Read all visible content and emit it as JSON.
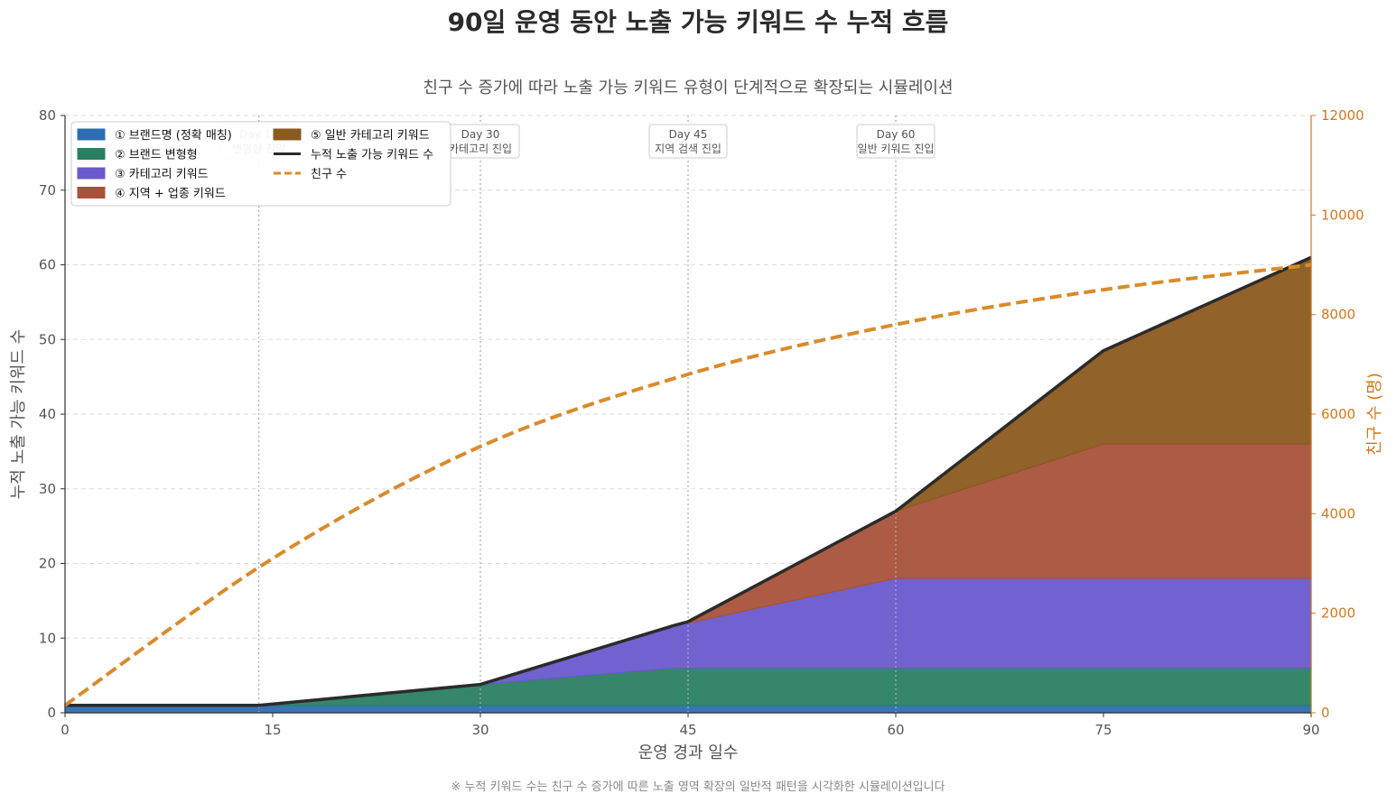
{
  "chart_data": {
    "type": "area",
    "title": "90일 운영 동안 노출 가능 키워드 수 누적 흐름",
    "subtitle": "친구 수 증가에 따라 노출 가능 키워드 유형이 단계적으로 확장되는 시뮬레이션",
    "xlabel": "운영 경과 일수",
    "ylabel": "누적 노출 가능 키워드 수",
    "y2label": "친구 수 (명)",
    "footnote": "※ 누적 키워드 수는 친구 수 증가에 따른 노출 영역 확장의 일반적 패턴을 시각화한 시뮬레이션입니다",
    "xlim": [
      0,
      90
    ],
    "ylim": [
      0,
      80
    ],
    "y2lim": [
      0,
      12000
    ],
    "xticks": [
      0,
      15,
      30,
      45,
      60,
      75,
      90
    ],
    "yticks": [
      0,
      10,
      20,
      30,
      40,
      50,
      60,
      70,
      80
    ],
    "y2ticks": [
      0,
      2000,
      4000,
      6000,
      8000,
      10000,
      12000
    ],
    "grid": true,
    "legend_position": "top-left",
    "x": [
      0,
      14,
      30,
      44,
      45,
      60,
      75,
      90
    ],
    "stack_series": [
      {
        "name": "① 브랜드명 (정확 매칭)",
        "color": "#2e6db4",
        "values": [
          1,
          1,
          1,
          1,
          1,
          1,
          1,
          1
        ]
      },
      {
        "name": "② 브랜드 변형형",
        "color": "#2a7f62",
        "values": [
          0,
          0,
          2.8,
          5,
          5,
          5,
          5,
          5
        ]
      },
      {
        "name": "③ 카테고리 키워드",
        "color": "#6a5acd",
        "values": [
          0,
          0,
          0,
          5.7,
          6,
          12,
          12,
          12
        ]
      },
      {
        "name": "④ 지역 + 업종 키워드",
        "color": "#a8523b",
        "values": [
          0,
          0,
          0,
          0,
          0.2,
          9,
          18,
          18
        ]
      },
      {
        "name": "⑤ 일반 카테고리 키워드",
        "color": "#8b5a1f",
        "values": [
          0,
          0,
          0,
          0,
          0,
          0,
          12.5,
          25
        ]
      }
    ],
    "total_series": {
      "name": "누적 노출 가능 키워드 수",
      "color": "#2b2b2b"
    },
    "friends_series": {
      "name": "친구 수",
      "color": "#d98b2b",
      "x": [
        0,
        15,
        30,
        45,
        60,
        75,
        90
      ],
      "values": [
        150,
        3100,
        5350,
        6800,
        7800,
        8500,
        9000
      ]
    },
    "annotations": [
      {
        "x": 14,
        "day": "Day 14",
        "label": "변형형 진입"
      },
      {
        "x": 30,
        "day": "Day 30",
        "label": "카테고리 진입"
      },
      {
        "x": 45,
        "day": "Day 45",
        "label": "지역 검색 진입"
      },
      {
        "x": 60,
        "day": "Day 60",
        "label": "일반 키워드 진입"
      }
    ]
  }
}
